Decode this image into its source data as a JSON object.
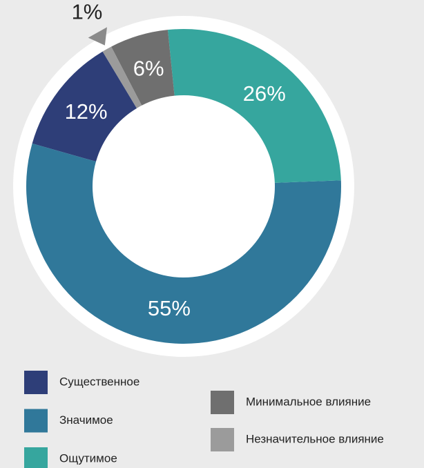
{
  "chart_data": {
    "type": "donut",
    "categories": [
      "Существенное",
      "Значимое",
      "Ощутимое",
      "Минимальное влияние",
      "Незначительное влияние"
    ],
    "values": [
      12,
      55,
      26,
      6,
      1
    ],
    "value_labels": [
      "12%",
      "55%",
      "26%",
      "6%",
      "1%"
    ],
    "colors": [
      "#2e3e78",
      "#30789a",
      "#36a69e",
      "#6f6f6f",
      "#9b9b9b"
    ]
  }
}
